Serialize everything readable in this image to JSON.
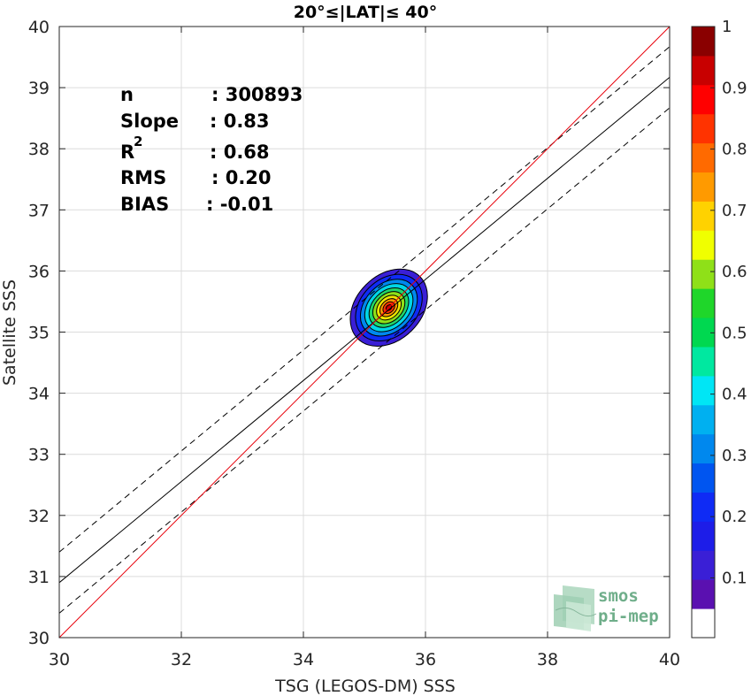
{
  "chart_data": {
    "type": "scatter",
    "title": "20°≤|LAT|≤ 40°",
    "xlabel": "TSG (LEGOS-DM) SSS",
    "ylabel": "Satellite SSS",
    "xlim": [
      30,
      40
    ],
    "ylim": [
      30,
      40
    ],
    "xticks": [
      30,
      32,
      34,
      36,
      38,
      40
    ],
    "yticks": [
      30,
      31,
      32,
      33,
      34,
      35,
      36,
      37,
      38,
      39,
      40
    ],
    "grid": true,
    "stats": {
      "n_label": "n",
      "n_value": ": 300893",
      "slope_label": "Slope",
      "slope_value": ": 0.83",
      "r2_label": "R",
      "r2_sup": "2",
      "r2_value": ": 0.68",
      "rms_label": "RMS",
      "rms_value": ": 0.20",
      "bias_label": "BIAS",
      "bias_value": ": -0.01"
    },
    "lines": {
      "identity": {
        "x": [
          30,
          40
        ],
        "y": [
          30,
          40
        ],
        "color": "#e8000b"
      },
      "fit": {
        "x": [
          30,
          40
        ],
        "y": [
          30.9,
          39.17
        ],
        "color": "#000000"
      },
      "fit_upper": {
        "x": [
          30,
          40
        ],
        "y": [
          31.4,
          39.67
        ],
        "color": "#000000",
        "dash": true
      },
      "fit_lower": {
        "x": [
          30,
          40
        ],
        "y": [
          30.4,
          38.67
        ],
        "color": "#000000",
        "dash": true
      }
    },
    "density": {
      "center": [
        35.4,
        35.4
      ],
      "contours": [
        {
          "level": 0.05,
          "rx": 0.72,
          "ry": 0.53,
          "color": "#3a1fd6"
        },
        {
          "level": 0.15,
          "rx": 0.62,
          "ry": 0.46,
          "color": "#0f2bf5"
        },
        {
          "level": 0.25,
          "rx": 0.53,
          "ry": 0.39,
          "color": "#0088ee"
        },
        {
          "level": 0.35,
          "rx": 0.45,
          "ry": 0.33,
          "color": "#00d6e6"
        },
        {
          "level": 0.45,
          "rx": 0.37,
          "ry": 0.27,
          "color": "#1fd66a"
        },
        {
          "level": 0.55,
          "rx": 0.3,
          "ry": 0.22,
          "color": "#8fe018"
        },
        {
          "level": 0.65,
          "rx": 0.23,
          "ry": 0.17,
          "color": "#f0e400"
        },
        {
          "level": 0.75,
          "rx": 0.17,
          "ry": 0.12,
          "color": "#ff9a00"
        },
        {
          "level": 0.85,
          "rx": 0.11,
          "ry": 0.08,
          "color": "#ff3300"
        },
        {
          "level": 0.95,
          "rx": 0.055,
          "ry": 0.04,
          "color": "#b30000"
        }
      ]
    },
    "colorbar": {
      "ticks": [
        0.1,
        0.2,
        0.3,
        0.4,
        0.5,
        0.6,
        0.7,
        0.8,
        0.9,
        1
      ],
      "tick_labels": [
        "0.1",
        "0.2",
        "0.3",
        "0.4",
        "0.5",
        "0.6",
        "0.7",
        "0.8",
        "0.9",
        "1"
      ],
      "levels": [
        0.05,
        0.1,
        0.15,
        0.2,
        0.25,
        0.3,
        0.35,
        0.4,
        0.45,
        0.5,
        0.55,
        0.6,
        0.65,
        0.7,
        0.75,
        0.8,
        0.85,
        0.9,
        0.95,
        1.0
      ],
      "colors": [
        "#ffffff",
        "#5a10b0",
        "#3a1fd6",
        "#1d1de8",
        "#0f2bf5",
        "#0055f0",
        "#0088ee",
        "#00b0f0",
        "#00e6f5",
        "#00e8a0",
        "#00d850",
        "#1fd62a",
        "#8fe018",
        "#f0ff00",
        "#ffd200",
        "#ff9a00",
        "#ff6a00",
        "#ff3300",
        "#ff0000",
        "#c80000",
        "#8a0000"
      ]
    }
  },
  "logo": {
    "line1": "smos",
    "line2": "pi-mep"
  }
}
